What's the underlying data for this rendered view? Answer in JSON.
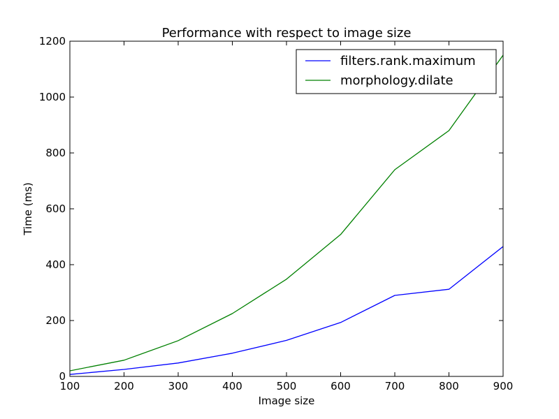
{
  "chart_data": {
    "type": "line",
    "title": "Performance with respect to image size",
    "xlabel": "Image size",
    "ylabel": "Time (ms)",
    "xlim": [
      100,
      900
    ],
    "ylim": [
      0,
      1200
    ],
    "x_ticks": [
      "100",
      "200",
      "300",
      "400",
      "500",
      "600",
      "700",
      "800",
      "900"
    ],
    "y_ticks": [
      "0",
      "200",
      "400",
      "600",
      "800",
      "1000",
      "1200"
    ],
    "grid": false,
    "legend_position": "top-right",
    "x": [
      100,
      200,
      300,
      400,
      500,
      600,
      700,
      800,
      900
    ],
    "series": [
      {
        "name": "filters.rank.maximum",
        "color": "#0000ff",
        "values": [
          7,
          25,
          48,
          83,
          129,
          193,
          290,
          312,
          465
        ]
      },
      {
        "name": "morphology.dilate",
        "color": "#008000",
        "values": [
          20,
          58,
          128,
          225,
          348,
          508,
          740,
          880,
          1150
        ]
      }
    ]
  }
}
